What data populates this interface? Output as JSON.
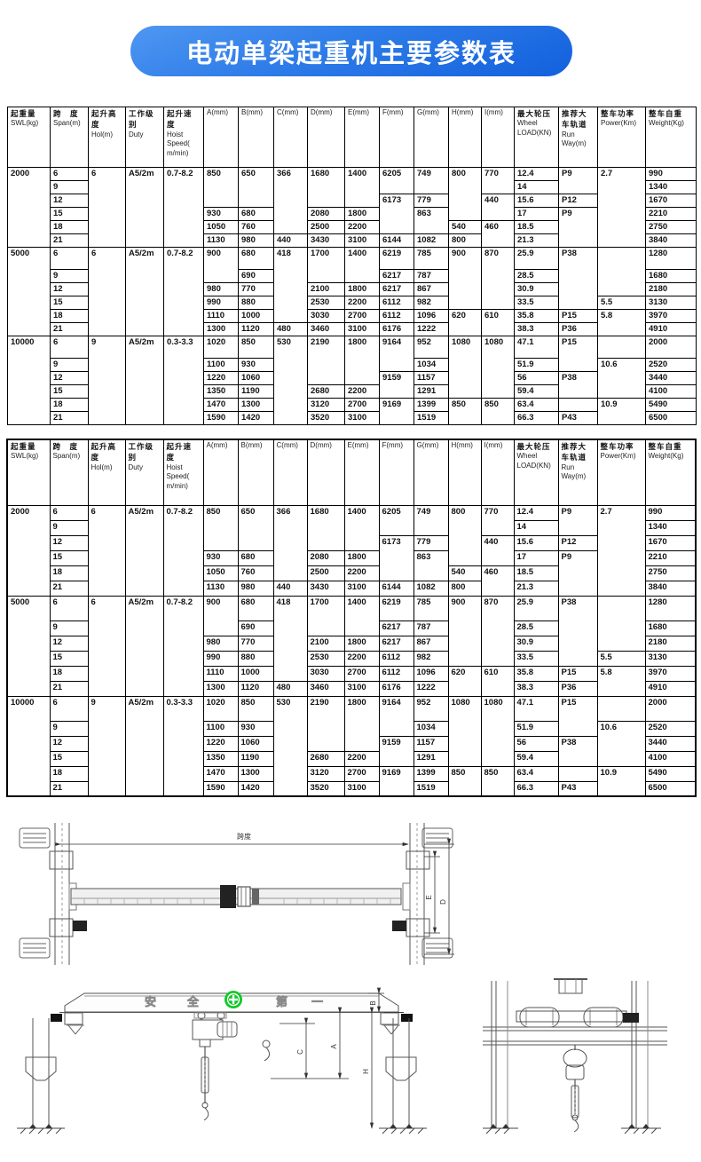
{
  "title": "电动单梁起重机主要参数表",
  "colors": {
    "banner_blue_start": "#4f97f2",
    "banner_blue_end": "#1260dd",
    "banner_text": "#ffffff",
    "safety_badge_green": "#12c72a",
    "table_border": "#000000"
  },
  "table": {
    "headers": [
      {
        "cn": "起重量",
        "en": "SWL(kg)"
      },
      {
        "cn": "跨　度",
        "en": "Span(m)"
      },
      {
        "cn": "起升高\n度",
        "en": "Hol(m)"
      },
      {
        "cn": "工作级\n别",
        "en": "Duty"
      },
      {
        "cn": "起升速\n度",
        "en": "Hoist\nSpeed(\nm/min)"
      },
      {
        "cn": "",
        "en": "A(mm)"
      },
      {
        "cn": "",
        "en": "B(mm)"
      },
      {
        "cn": "",
        "en": "C(mm)"
      },
      {
        "cn": "",
        "en": "D(mm)"
      },
      {
        "cn": "",
        "en": "E(mm)"
      },
      {
        "cn": "",
        "en": "F(mm)"
      },
      {
        "cn": "",
        "en": "G(mm)"
      },
      {
        "cn": "",
        "en": "H(mm)"
      },
      {
        "cn": "",
        "en": "I(mm)"
      },
      {
        "cn": "最大轮压",
        "en": "Wheel\nLOAD(KN)"
      },
      {
        "cn": "推荐大\n车轨道",
        "en": "Run\nWay(m)"
      },
      {
        "cn": "整车功率",
        "en": "Power(Km)"
      },
      {
        "cn": "整车自重",
        "en": "Weight(Kg)"
      }
    ],
    "rows": [
      [
        [
          "2000",
          6
        ],
        "6",
        [
          "6",
          6
        ],
        [
          "A5/2m",
          6
        ],
        [
          "0.7-8.2",
          6
        ],
        [
          "850",
          3
        ],
        [
          "650",
          3
        ],
        [
          "366",
          5
        ],
        [
          "1680",
          3
        ],
        [
          "1400",
          3
        ],
        [
          "6205",
          2
        ],
        [
          "749",
          2
        ],
        [
          "800",
          4
        ],
        [
          "770",
          2
        ],
        "12.4",
        [
          "P9",
          2
        ],
        [
          "2.7",
          6
        ],
        "990"
      ],
      [
        "9",
        "14",
        "1340"
      ],
      [
        "12",
        [
          "6173",
          3
        ],
        "779",
        [
          "440",
          2
        ],
        "15.6",
        "P12",
        "1670"
      ],
      [
        "15",
        "930",
        "680",
        "2080",
        "1800",
        [
          "863",
          2
        ],
        "17",
        [
          "P9",
          3
        ],
        "2210"
      ],
      [
        "18",
        "1050",
        "760",
        "2500",
        "2200",
        "540",
        [
          "460",
          2
        ],
        "18.5",
        "2750"
      ],
      [
        "21",
        "1130",
        "980",
        "440",
        "3430",
        "3100",
        "6144",
        "1082",
        "800",
        "21.3",
        "3840"
      ],
      [
        [
          "5000",
          6
        ],
        "6",
        [
          "6",
          6
        ],
        [
          "A5/2m",
          6
        ],
        [
          "0.7-8.2",
          6
        ],
        [
          "900",
          2
        ],
        "680",
        [
          "418",
          5
        ],
        [
          "1700",
          2
        ],
        [
          "1400",
          2
        ],
        "6219",
        "785",
        [
          "900",
          4
        ],
        [
          "870",
          4
        ],
        "25.9",
        [
          "P38",
          4
        ],
        [
          "",
          3
        ],
        "1280"
      ],
      [
        "9",
        "690",
        "6217",
        "787",
        "28.5",
        "1680"
      ],
      [
        "12",
        "980",
        "770",
        "2100",
        "1800",
        "6217",
        "867",
        "30.9",
        "2180"
      ],
      [
        "15",
        "990",
        "880",
        "2530",
        "2200",
        "6112",
        "982",
        "33.5",
        "5.5",
        "3130"
      ],
      [
        "18",
        "1110",
        "1000",
        "3030",
        "2700",
        "6112",
        "1096",
        [
          "620",
          2
        ],
        [
          "610",
          2
        ],
        "35.8",
        "P15",
        [
          "5.8",
          2
        ],
        "3970"
      ],
      [
        "21",
        "1300",
        "1120",
        "480",
        "3460",
        "3100",
        "6176",
        "1222",
        "38.3",
        "P36",
        "4910"
      ],
      [
        [
          "10000",
          6
        ],
        "6",
        [
          "9",
          6
        ],
        [
          "A5/2m",
          6
        ],
        [
          "0.3-3.3",
          6
        ],
        "1020",
        "850",
        [
          "530",
          6
        ],
        [
          "2190",
          3
        ],
        [
          "1800",
          3
        ],
        [
          "9164",
          2
        ],
        "952",
        [
          "1080",
          4
        ],
        [
          "1080",
          4
        ],
        "47.1",
        [
          "P15",
          2
        ],
        "",
        "2000"
      ],
      [
        "9",
        "1100",
        "930",
        "1034",
        "51.9",
        [
          "10.6",
          3
        ],
        "2520"
      ],
      [
        "12",
        "1220",
        "1060",
        [
          "9159",
          2
        ],
        "1157",
        "56",
        [
          "P38",
          2
        ],
        "3440"
      ],
      [
        "15",
        "1350",
        "1190",
        "2680",
        "2200",
        "1291",
        "59.4",
        "4100"
      ],
      [
        "18",
        "1470",
        "1300",
        "3120",
        "2700",
        [
          "9169",
          2
        ],
        "1399",
        [
          "850",
          2
        ],
        [
          "850",
          2
        ],
        "63.4",
        "",
        [
          "10.9",
          2
        ],
        "5490"
      ],
      [
        "21",
        "1590",
        "1420",
        "3520",
        "3100",
        "1519",
        "66.3",
        "P43",
        "6500"
      ]
    ]
  },
  "drawings": {
    "plan": {
      "span_label": "跨度",
      "dim_e": "E",
      "dim_d": "D"
    },
    "front": {
      "beam_chars": [
        "安",
        "全",
        "第",
        "一"
      ],
      "dim_b": "B",
      "dim_a": "A",
      "dim_c": "C",
      "dim_h": "H"
    }
  }
}
